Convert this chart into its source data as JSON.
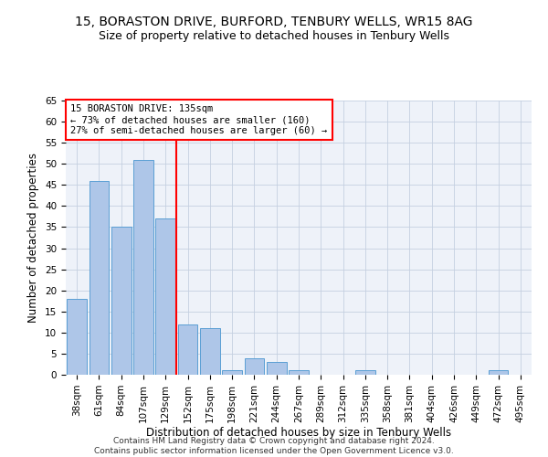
{
  "title1": "15, BORASTON DRIVE, BURFORD, TENBURY WELLS, WR15 8AG",
  "title2": "Size of property relative to detached houses in Tenbury Wells",
  "xlabel": "Distribution of detached houses by size in Tenbury Wells",
  "ylabel": "Number of detached properties",
  "categories": [
    "38sqm",
    "61sqm",
    "84sqm",
    "107sqm",
    "129sqm",
    "152sqm",
    "175sqm",
    "198sqm",
    "221sqm",
    "244sqm",
    "267sqm",
    "289sqm",
    "312sqm",
    "335sqm",
    "358sqm",
    "381sqm",
    "404sqm",
    "426sqm",
    "449sqm",
    "472sqm",
    "495sqm"
  ],
  "values": [
    18,
    46,
    35,
    51,
    37,
    12,
    11,
    1,
    4,
    3,
    1,
    0,
    0,
    1,
    0,
    0,
    0,
    0,
    0,
    1,
    0
  ],
  "bar_color": "#aec6e8",
  "bar_edge_color": "#5a9fd4",
  "ref_line_x": 4.5,
  "ref_line_color": "red",
  "annotation_line1": "15 BORASTON DRIVE: 135sqm",
  "annotation_line2": "← 73% of detached houses are smaller (160)",
  "annotation_line3": "27% of semi-detached houses are larger (60) →",
  "annotation_box_color": "white",
  "annotation_box_edge_color": "red",
  "ylim": [
    0,
    65
  ],
  "yticks": [
    0,
    5,
    10,
    15,
    20,
    25,
    30,
    35,
    40,
    45,
    50,
    55,
    60,
    65
  ],
  "footer": "Contains HM Land Registry data © Crown copyright and database right 2024.\nContains public sector information licensed under the Open Government Licence v3.0.",
  "bg_color": "#eef2f9",
  "grid_color": "#c5d0e0",
  "title1_fontsize": 10,
  "title2_fontsize": 9,
  "tick_fontsize": 7.5,
  "label_fontsize": 8.5,
  "footer_fontsize": 6.5,
  "annotation_fontsize": 7.5
}
